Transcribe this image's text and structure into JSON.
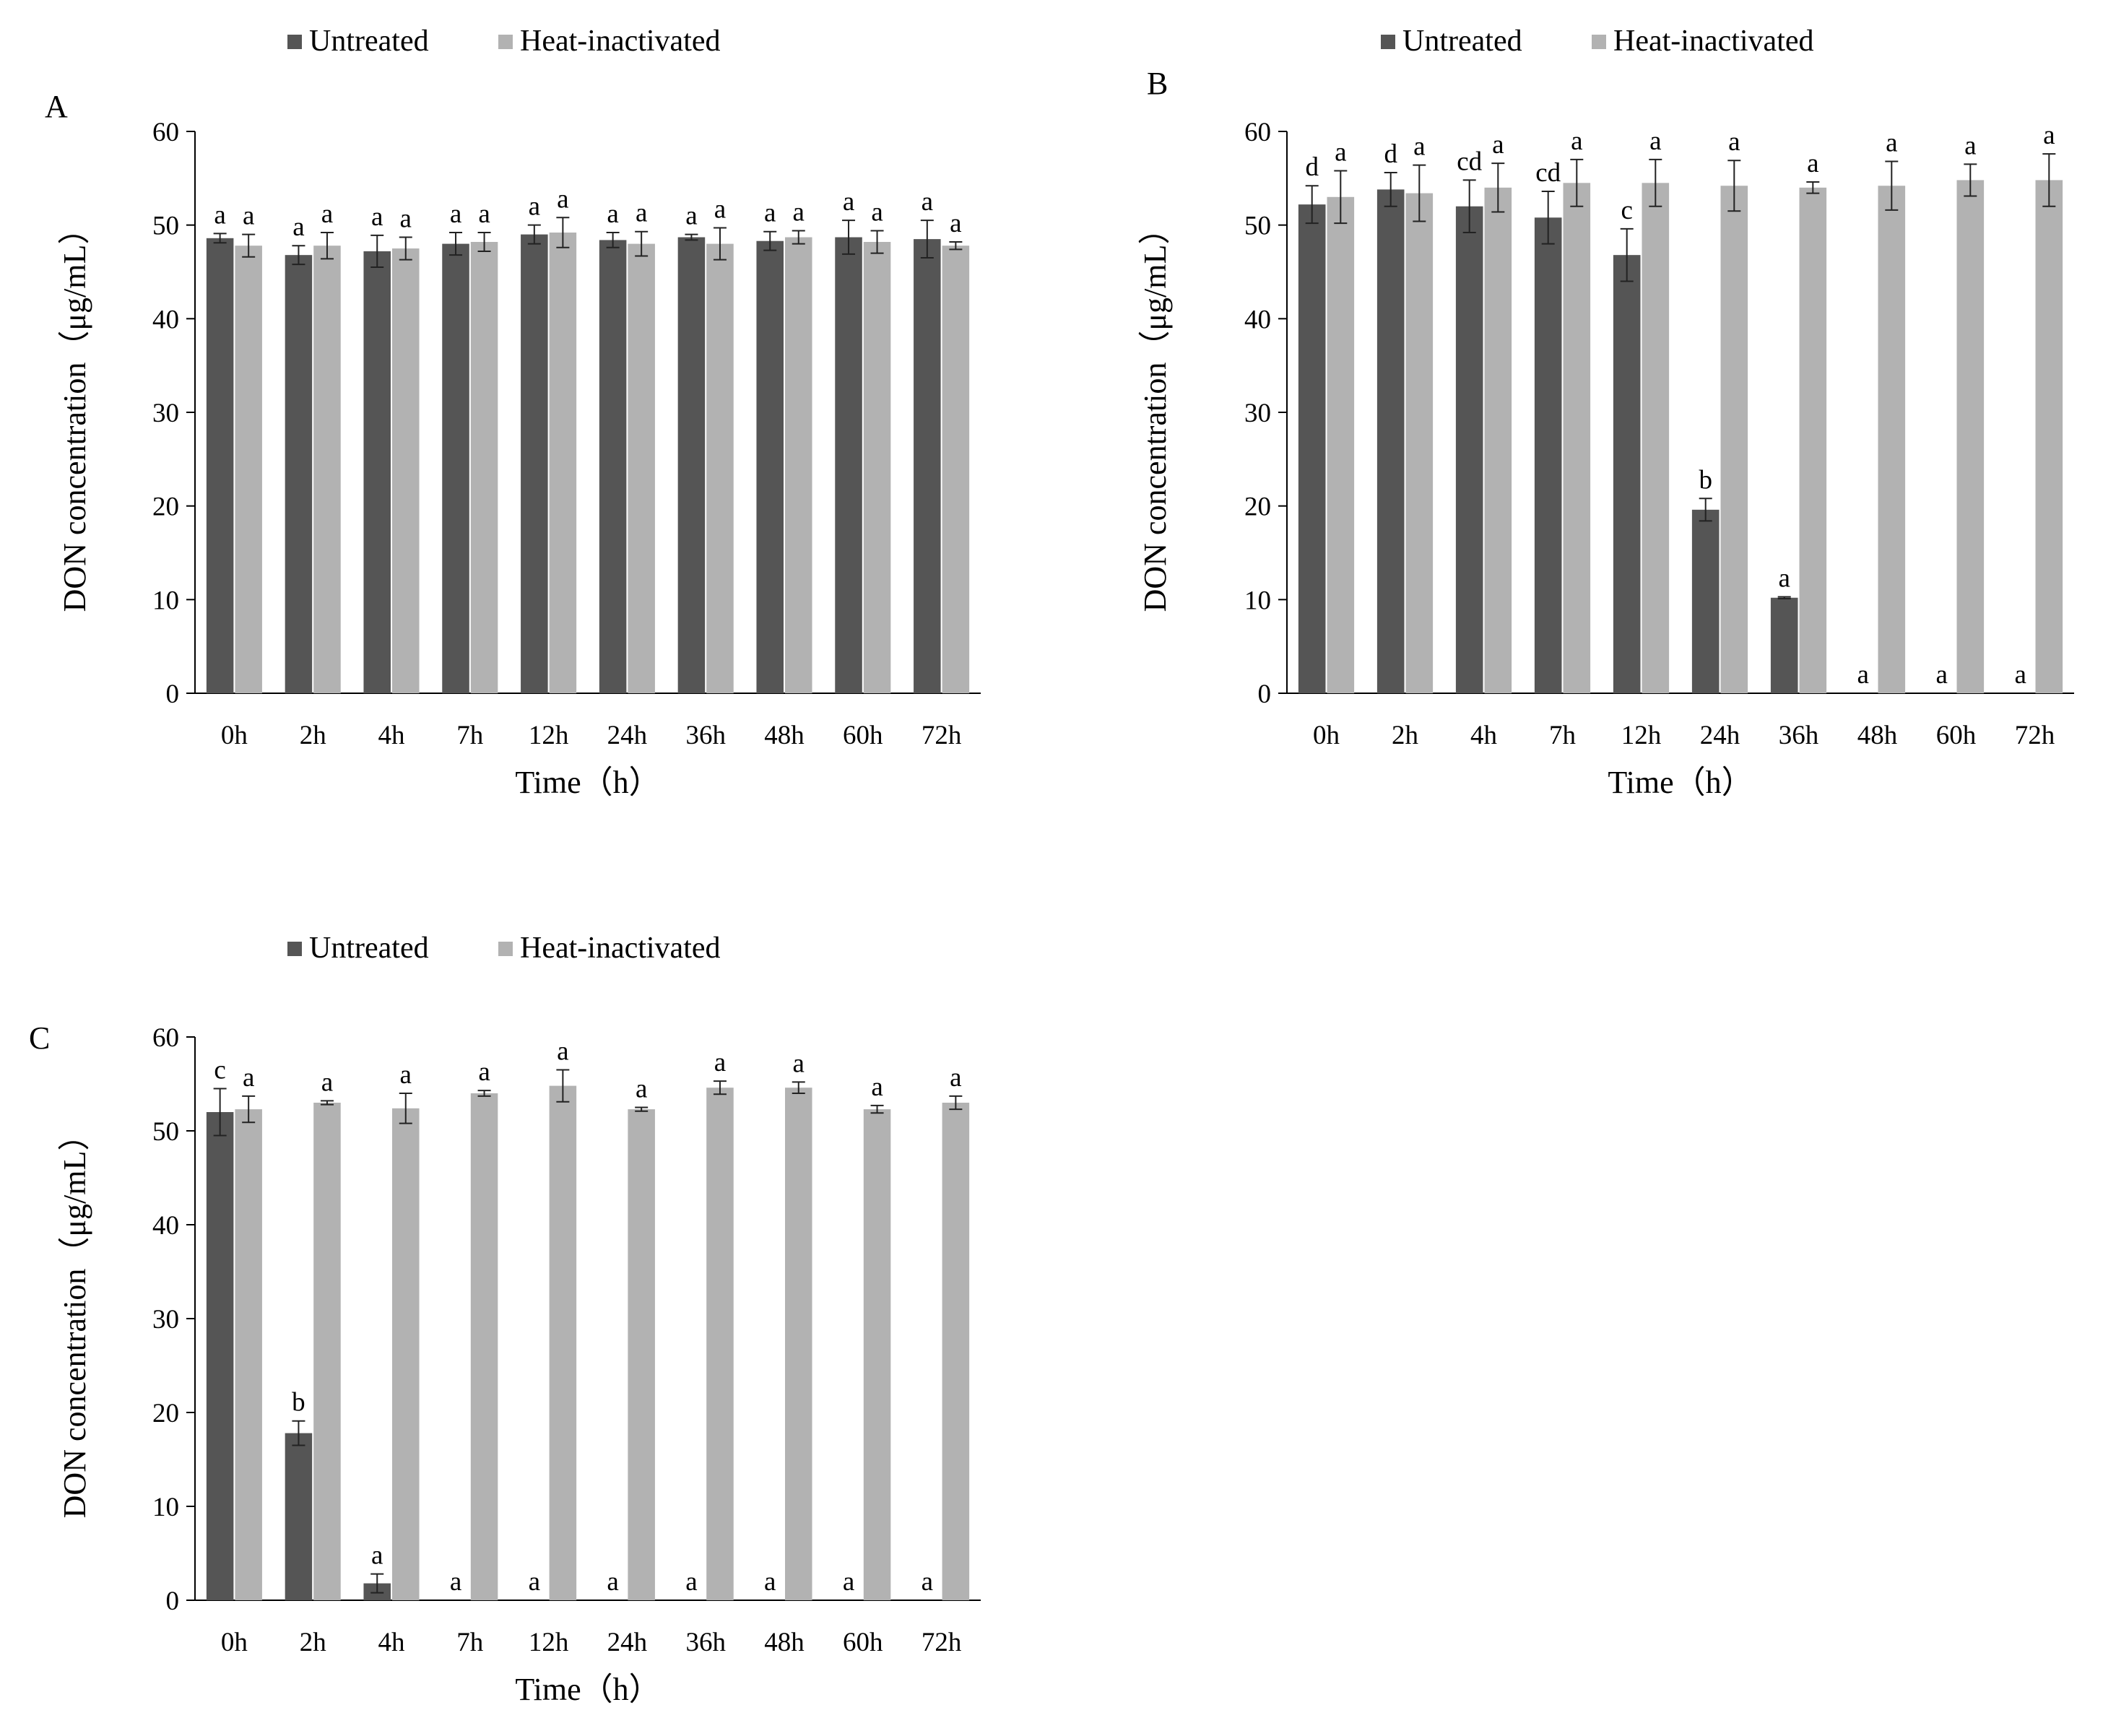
{
  "figure": {
    "legend": {
      "untreated": "Untreated",
      "heat_inactivated": "Heat-inactivated"
    },
    "colors": {
      "untreated": "#555555",
      "heat_inactivated": "#b2b2b2",
      "axis": "#000000"
    }
  },
  "chart_data": [
    {
      "type": "bar",
      "panel": "A",
      "categories": [
        "0h",
        "2h",
        "4h",
        "7h",
        "12h",
        "24h",
        "36h",
        "48h",
        "60h",
        "72h"
      ],
      "xlabel": "Time（h）",
      "ylabel": "DON concentration（μg/mL）",
      "ylim": [
        0,
        60
      ],
      "yticks": [
        0,
        10,
        20,
        30,
        40,
        50,
        60
      ],
      "series": [
        {
          "name": "Untreated",
          "values": [
            48.6,
            46.8,
            47.2,
            48.0,
            49.0,
            48.4,
            48.7,
            48.3,
            48.7,
            48.5
          ],
          "errors": [
            0.5,
            1.0,
            1.7,
            1.2,
            1.0,
            0.8,
            0.3,
            1.0,
            1.8,
            2.0
          ],
          "labels": [
            "a",
            "a",
            "a",
            "a",
            "a",
            "a",
            "a",
            "a",
            "a",
            "a"
          ]
        },
        {
          "name": "Heat-inactivated",
          "values": [
            47.8,
            47.8,
            47.5,
            48.2,
            49.2,
            48.0,
            48.0,
            48.7,
            48.2,
            47.8
          ],
          "errors": [
            1.2,
            1.4,
            1.2,
            1.0,
            1.6,
            1.3,
            1.7,
            0.7,
            1.2,
            0.4
          ],
          "labels": [
            "a",
            "a",
            "a",
            "a",
            "a",
            "a",
            "a",
            "a",
            "a",
            "a"
          ]
        }
      ]
    },
    {
      "type": "bar",
      "panel": "B",
      "categories": [
        "0h",
        "2h",
        "4h",
        "7h",
        "12h",
        "24h",
        "36h",
        "48h",
        "60h",
        "72h"
      ],
      "xlabel": "Time（h）",
      "ylabel": "DON concentration（μg/mL）",
      "ylim": [
        0,
        60
      ],
      "yticks": [
        0,
        10,
        20,
        30,
        40,
        50,
        60
      ],
      "series": [
        {
          "name": "Untreated",
          "values": [
            52.2,
            53.8,
            52.0,
            50.8,
            46.8,
            19.6,
            10.2,
            0,
            0,
            0
          ],
          "errors": [
            2.0,
            1.8,
            2.8,
            2.8,
            2.8,
            1.2,
            0.1,
            0,
            0,
            0
          ],
          "labels": [
            "d",
            "d",
            "cd",
            "cd",
            "c",
            "b",
            "a",
            "a",
            "a",
            "a"
          ]
        },
        {
          "name": "Heat-inactivated",
          "values": [
            53.0,
            53.4,
            54.0,
            54.5,
            54.5,
            54.2,
            54.0,
            54.2,
            54.8,
            54.8
          ],
          "errors": [
            2.8,
            3.0,
            2.6,
            2.5,
            2.5,
            2.7,
            0.6,
            2.6,
            1.7,
            2.8
          ],
          "labels": [
            "a",
            "a",
            "a",
            "a",
            "a",
            "a",
            "a",
            "a",
            "a",
            "a"
          ]
        }
      ]
    },
    {
      "type": "bar",
      "panel": "C",
      "categories": [
        "0h",
        "2h",
        "4h",
        "7h",
        "12h",
        "24h",
        "36h",
        "48h",
        "60h",
        "72h"
      ],
      "xlabel": "Time（h）",
      "ylabel": "DON concentration（μg/mL）",
      "ylim": [
        0,
        60
      ],
      "yticks": [
        0,
        10,
        20,
        30,
        40,
        50,
        60
      ],
      "series": [
        {
          "name": "Untreated",
          "values": [
            52.0,
            17.8,
            1.8,
            0,
            0,
            0,
            0,
            0,
            0,
            0
          ],
          "errors": [
            2.5,
            1.3,
            1.0,
            0,
            0,
            0,
            0,
            0,
            0,
            0
          ],
          "labels": [
            "c",
            "b",
            "a",
            "a",
            "a",
            "a",
            "a",
            "a",
            "a",
            "a"
          ]
        },
        {
          "name": "Heat-inactivated",
          "values": [
            52.3,
            53.0,
            52.4,
            54.0,
            54.8,
            52.3,
            54.6,
            54.6,
            52.3,
            53.0
          ],
          "errors": [
            1.4,
            0.2,
            1.6,
            0.3,
            1.7,
            0.2,
            0.7,
            0.6,
            0.4,
            0.7
          ],
          "labels": [
            "a",
            "a",
            "a",
            "a",
            "a",
            "a",
            "a",
            "a",
            "a",
            "a"
          ]
        }
      ]
    }
  ]
}
